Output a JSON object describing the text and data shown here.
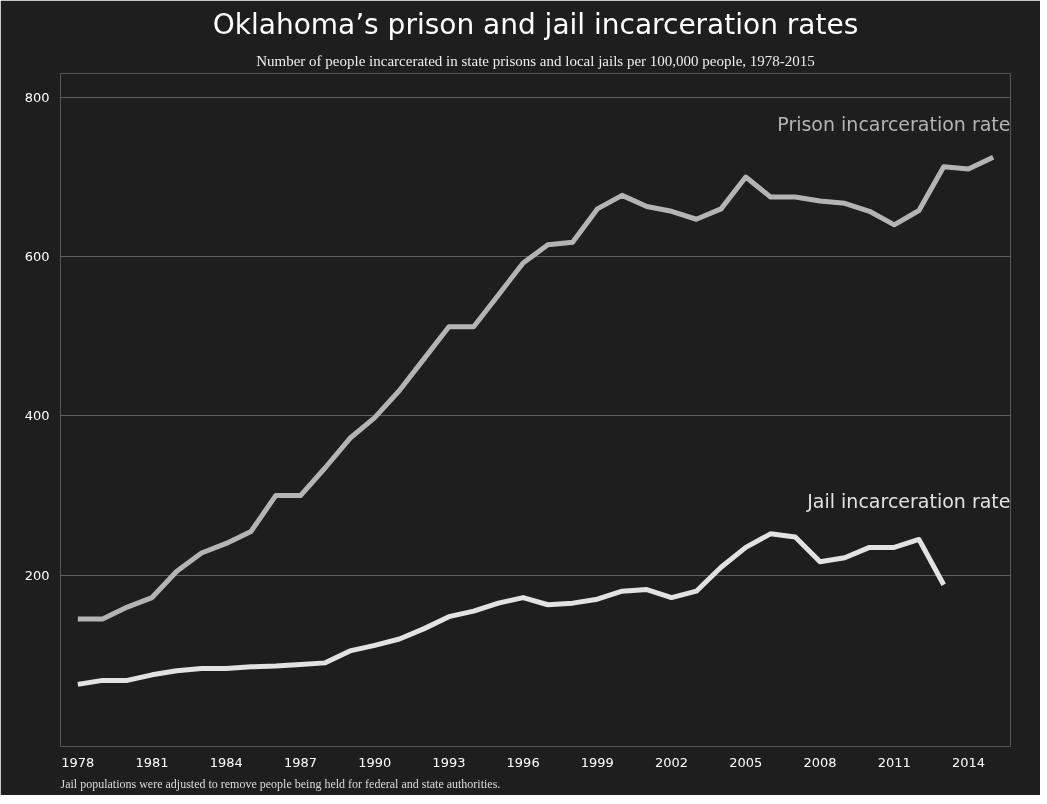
{
  "chart_data": {
    "type": "line",
    "title": "Oklahoma’s prison and jail incarceration rates",
    "subtitle": "Number of people incarcerated in state prisons and local jails per 100,000 people, 1978-2015",
    "annotations": [
      "Jail populations were adjusted to remove people being held for federal and state authorities."
    ],
    "x": [
      1978,
      1979,
      1980,
      1981,
      1982,
      1983,
      1984,
      1985,
      1986,
      1987,
      1988,
      1989,
      1990,
      1991,
      1992,
      1993,
      1994,
      1995,
      1996,
      1997,
      1998,
      1999,
      2000,
      2001,
      2002,
      2003,
      2004,
      2005,
      2006,
      2007,
      2008,
      2009,
      2010,
      2011,
      2012,
      2013,
      2014,
      2015
    ],
    "series": [
      {
        "name": "Prison incarceration rate",
        "color": "#b4b4b4",
        "values": [
          145,
          145,
          160,
          172,
          205,
          228,
          240,
          255,
          300,
          300,
          335,
          372,
          398,
          432,
          472,
          512,
          512,
          552,
          592,
          615,
          618,
          660,
          677,
          663,
          657,
          647,
          660,
          700,
          675,
          675,
          670,
          667,
          657,
          640,
          658,
          713,
          710,
          725
        ]
      },
      {
        "name": "Jail incarceration rate",
        "color": "#e2e2e2",
        "values": [
          63,
          68,
          68,
          75,
          80,
          83,
          83,
          85,
          86,
          88,
          90,
          105,
          112,
          120,
          133,
          148,
          155,
          165,
          172,
          163,
          165,
          170,
          180,
          182,
          172,
          180,
          210,
          235,
          252,
          248,
          217,
          222,
          235,
          235,
          245,
          188,
          null,
          null
        ]
      }
    ],
    "xlim": [
      1977.3,
      2015.7
    ],
    "ylim": [
      -15,
      830
    ],
    "xticks": [
      1978,
      1981,
      1984,
      1987,
      1990,
      1993,
      1996,
      1999,
      2002,
      2005,
      2008,
      2011,
      2014
    ],
    "yticks": [
      200,
      400,
      600,
      800
    ],
    "grid": "y",
    "marker": "none",
    "line_style": "solid"
  }
}
